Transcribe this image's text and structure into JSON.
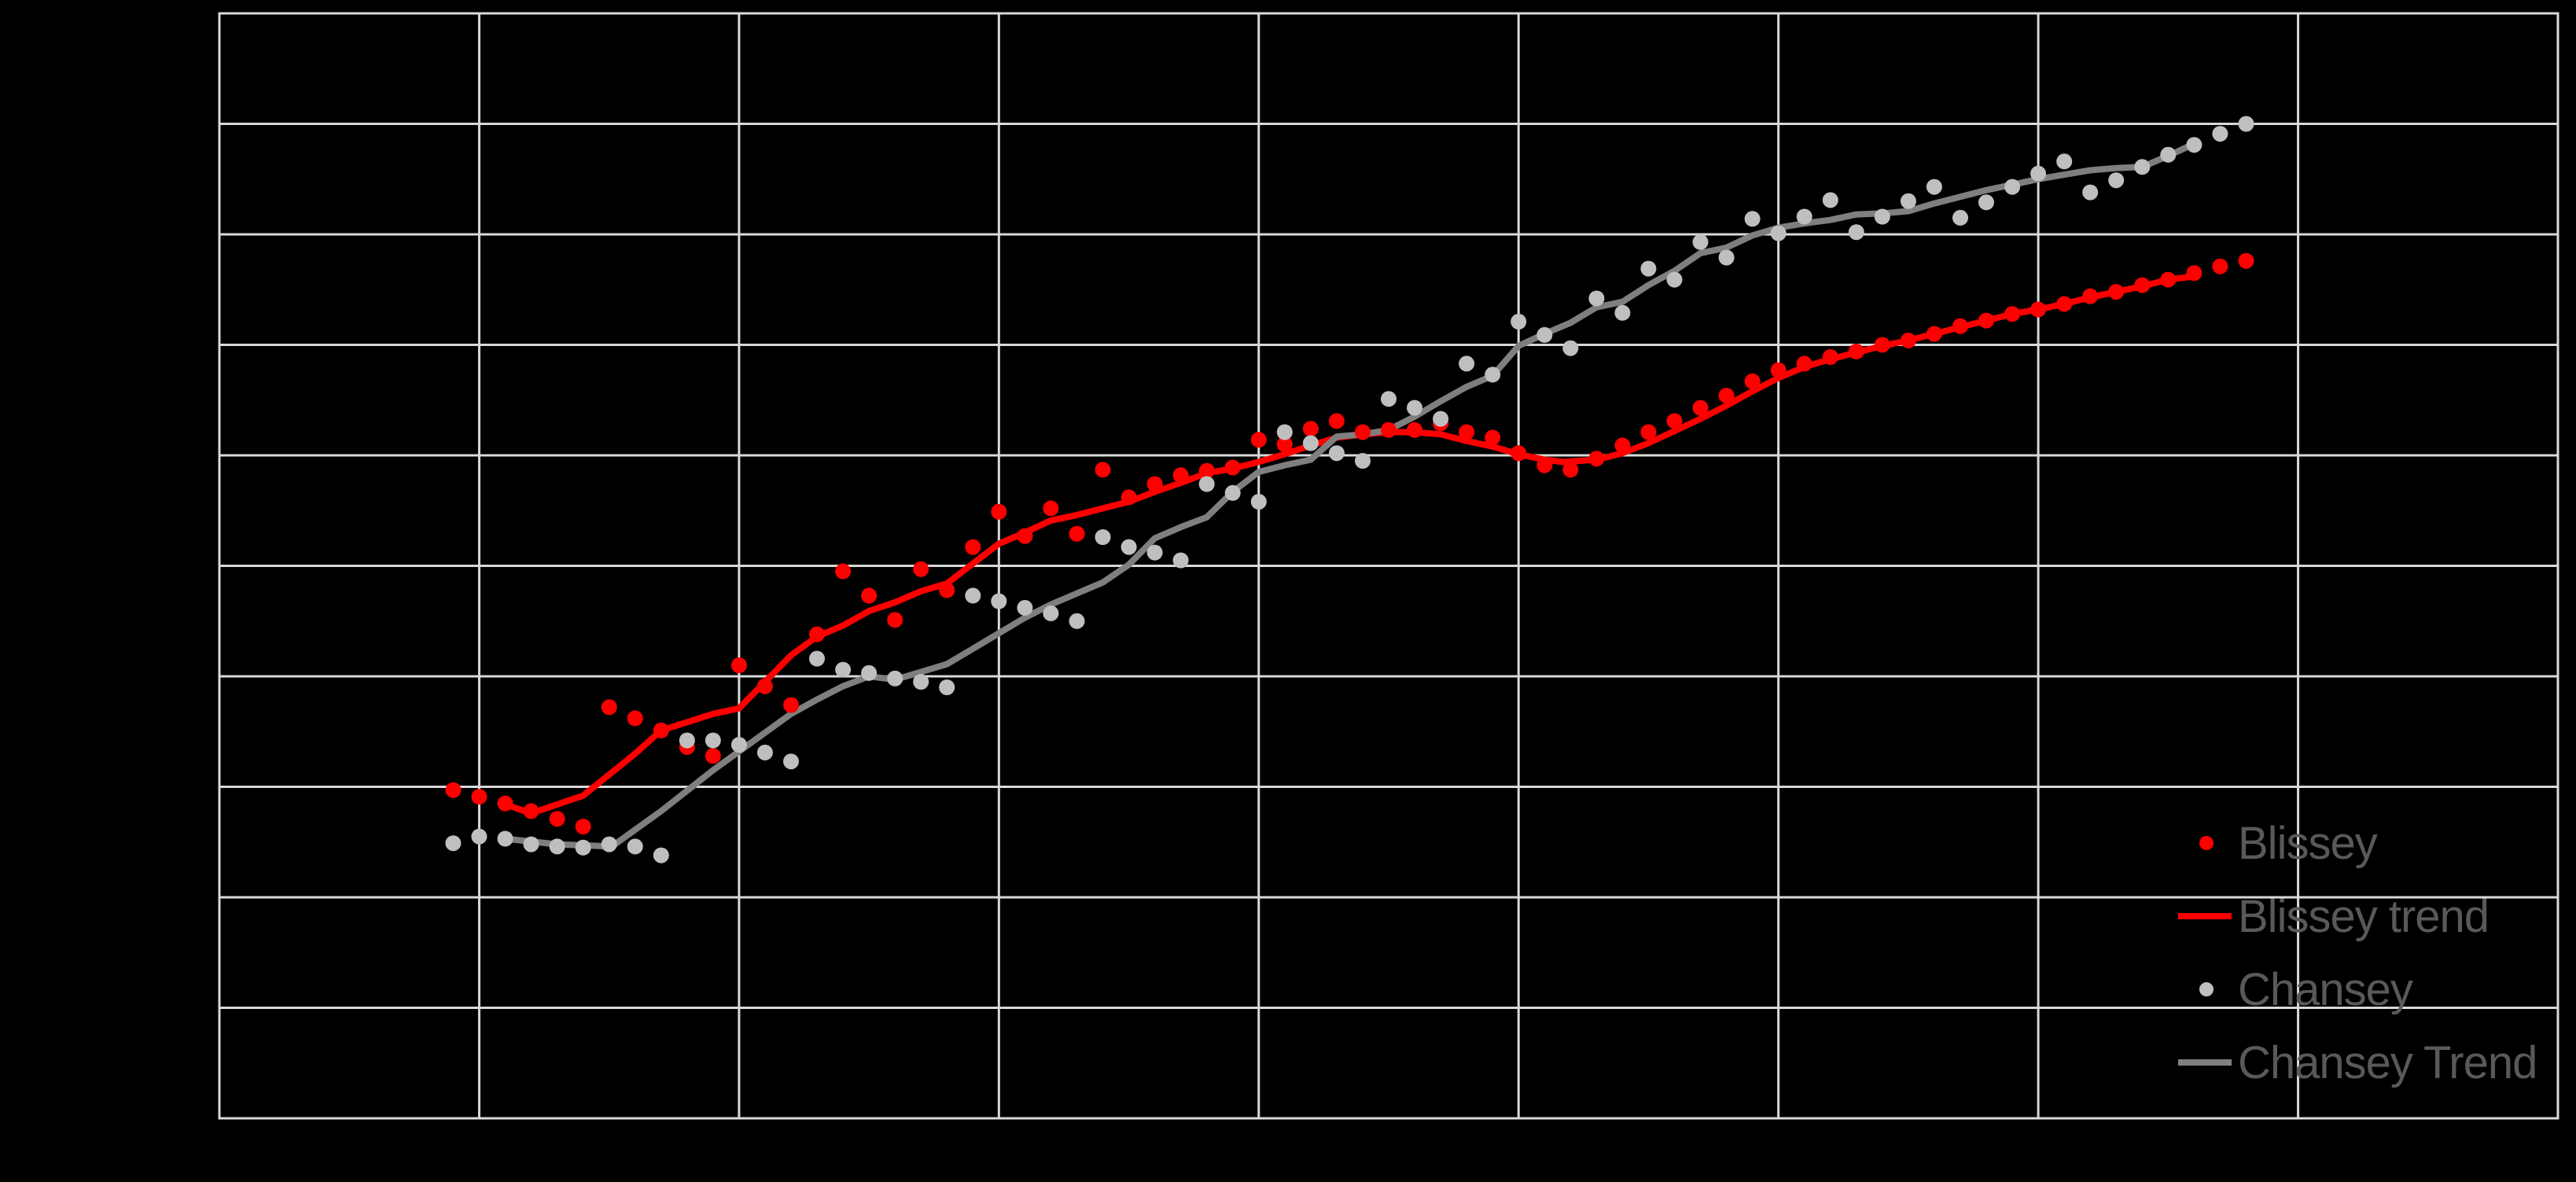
{
  "chart_data": {
    "type": "scatter",
    "title": "",
    "xlabel": "",
    "ylabel": "",
    "axis_tick_labels_visible": false,
    "xlim": [
      0,
      9
    ],
    "ylim": [
      0,
      10
    ],
    "grid": {
      "on": true,
      "x_divisions": 9,
      "y_divisions": 10
    },
    "units_note": "axes unlabeled in image; values are in gridline units estimated from the grid",
    "style": {
      "background": "#000000",
      "gridline_color": "#D9D9D9",
      "plot_border_color": "#D9D9D9"
    },
    "legend_position": "inside bottom-right",
    "series": [
      {
        "name": "Blissey",
        "type": "scatter",
        "color": "#FF0000",
        "x": [
          0.9,
          1.0,
          1.1,
          1.2,
          1.3,
          1.4,
          1.5,
          1.6,
          1.7,
          1.8,
          1.9,
          2.0,
          2.1,
          2.2,
          2.3,
          2.4,
          2.5,
          2.6,
          2.7,
          2.8,
          2.9,
          3.0,
          3.1,
          3.2,
          3.3,
          3.4,
          3.5,
          3.6,
          3.7,
          3.8,
          3.9,
          4.0,
          4.1,
          4.2,
          4.3,
          4.4,
          4.5,
          4.6,
          4.7,
          4.8,
          4.9,
          5.0,
          5.1,
          5.2,
          5.3,
          5.4,
          5.5,
          5.6,
          5.7,
          5.8,
          5.9,
          6.0,
          6.1,
          6.2,
          6.3,
          6.4,
          6.5,
          6.6,
          6.7,
          6.8,
          6.9,
          7.0,
          7.1,
          7.2,
          7.3,
          7.4,
          7.5,
          7.6,
          7.7,
          7.8
        ],
        "y": [
          2.97,
          2.91,
          2.85,
          2.78,
          2.71,
          2.64,
          3.72,
          3.62,
          3.51,
          3.36,
          3.28,
          4.1,
          3.91,
          3.74,
          4.38,
          4.95,
          4.73,
          4.51,
          4.97,
          4.78,
          5.17,
          5.49,
          5.27,
          5.52,
          5.29,
          5.87,
          5.62,
          5.74,
          5.82,
          5.86,
          5.89,
          6.14,
          6.1,
          6.24,
          6.31,
          6.21,
          6.23,
          6.23,
          6.29,
          6.21,
          6.16,
          6.02,
          5.91,
          5.87,
          5.97,
          6.09,
          6.21,
          6.31,
          6.43,
          6.54,
          6.67,
          6.77,
          6.83,
          6.89,
          6.94,
          7.0,
          7.04,
          7.1,
          7.17,
          7.22,
          7.28,
          7.32,
          7.37,
          7.44,
          7.48,
          7.54,
          7.59,
          7.65,
          7.71,
          7.76
        ]
      },
      {
        "name": "Blissey trend",
        "type": "line",
        "color": "#FF0000",
        "points": [
          [
            1.09,
            2.85
          ],
          [
            1.2,
            2.76
          ],
          [
            1.4,
            2.92
          ],
          [
            1.6,
            3.3
          ],
          [
            1.7,
            3.51
          ],
          [
            1.9,
            3.66
          ],
          [
            2.0,
            3.71
          ],
          [
            2.2,
            4.19
          ],
          [
            2.3,
            4.36
          ],
          [
            2.4,
            4.46
          ],
          [
            2.5,
            4.59
          ],
          [
            2.6,
            4.67
          ],
          [
            2.7,
            4.77
          ],
          [
            2.8,
            4.84
          ],
          [
            2.9,
            5.02
          ],
          [
            3.0,
            5.2
          ],
          [
            3.1,
            5.3
          ],
          [
            3.2,
            5.41
          ],
          [
            3.3,
            5.46
          ],
          [
            3.4,
            5.52
          ],
          [
            3.5,
            5.58
          ],
          [
            3.6,
            5.67
          ],
          [
            3.7,
            5.75
          ],
          [
            3.8,
            5.84
          ],
          [
            3.9,
            5.88
          ],
          [
            4.0,
            5.94
          ],
          [
            4.1,
            6.01
          ],
          [
            4.2,
            6.09
          ],
          [
            4.3,
            6.16
          ],
          [
            4.4,
            6.19
          ],
          [
            4.5,
            6.21
          ],
          [
            4.6,
            6.21
          ],
          [
            4.7,
            6.19
          ],
          [
            4.8,
            6.13
          ],
          [
            4.9,
            6.08
          ],
          [
            5.0,
            6.01
          ],
          [
            5.1,
            5.96
          ],
          [
            5.17,
            5.94
          ],
          [
            5.3,
            5.96
          ],
          [
            5.4,
            6.02
          ],
          [
            5.5,
            6.11
          ],
          [
            5.6,
            6.22
          ],
          [
            5.7,
            6.33
          ],
          [
            5.8,
            6.45
          ],
          [
            5.9,
            6.58
          ],
          [
            6.0,
            6.7
          ],
          [
            6.1,
            6.8
          ],
          [
            6.2,
            6.87
          ],
          [
            6.3,
            6.93
          ],
          [
            6.4,
            6.99
          ],
          [
            6.5,
            7.04
          ],
          [
            6.6,
            7.1
          ],
          [
            6.7,
            7.16
          ],
          [
            6.8,
            7.22
          ],
          [
            6.9,
            7.28
          ],
          [
            7.0,
            7.32
          ],
          [
            7.1,
            7.37
          ],
          [
            7.2,
            7.43
          ],
          [
            7.3,
            7.48
          ],
          [
            7.4,
            7.53
          ],
          [
            7.5,
            7.59
          ],
          [
            7.6,
            7.62
          ]
        ]
      },
      {
        "name": "Chansey",
        "type": "scatter",
        "color": "#BFBFBF",
        "x": [
          0.9,
          1.0,
          1.1,
          1.2,
          1.3,
          1.4,
          1.5,
          1.6,
          1.7,
          1.8,
          1.9,
          2.0,
          2.1,
          2.2,
          2.3,
          2.4,
          2.5,
          2.6,
          2.7,
          2.8,
          2.9,
          3.0,
          3.1,
          3.2,
          3.3,
          3.4,
          3.5,
          3.6,
          3.7,
          3.8,
          3.9,
          4.0,
          4.1,
          4.2,
          4.3,
          4.4,
          4.5,
          4.6,
          4.7,
          4.8,
          4.9,
          5.0,
          5.1,
          5.2,
          5.3,
          5.4,
          5.5,
          5.6,
          5.7,
          5.8,
          5.9,
          6.0,
          6.1,
          6.2,
          6.3,
          6.4,
          6.5,
          6.6,
          6.7,
          6.8,
          6.9,
          7.0,
          7.1,
          7.2,
          7.3,
          7.4,
          7.5,
          7.6,
          7.7,
          7.8
        ],
        "y": [
          2.49,
          2.55,
          2.53,
          2.48,
          2.46,
          2.45,
          2.48,
          2.46,
          2.38,
          3.42,
          3.42,
          3.38,
          3.31,
          3.23,
          4.16,
          4.06,
          4.03,
          3.98,
          3.95,
          3.9,
          4.73,
          4.68,
          4.62,
          4.57,
          4.5,
          5.26,
          5.17,
          5.12,
          5.05,
          5.74,
          5.66,
          5.58,
          6.21,
          6.11,
          6.02,
          5.95,
          6.51,
          6.43,
          6.33,
          6.83,
          6.73,
          7.21,
          7.09,
          6.97,
          7.42,
          7.29,
          7.69,
          7.59,
          7.93,
          7.79,
          8.14,
          8.01,
          8.16,
          8.31,
          8.02,
          8.16,
          8.3,
          8.43,
          8.15,
          8.29,
          8.43,
          8.55,
          8.66,
          8.38,
          8.49,
          8.61,
          8.72,
          8.81,
          8.91,
          9.0
        ]
      },
      {
        "name": "Chansey Trend",
        "type": "line",
        "color": "#7F7F7F",
        "points": [
          [
            1.1,
            2.53
          ],
          [
            1.3,
            2.48
          ],
          [
            1.51,
            2.46
          ],
          [
            1.7,
            2.78
          ],
          [
            1.9,
            3.15
          ],
          [
            2.0,
            3.32
          ],
          [
            2.2,
            3.66
          ],
          [
            2.3,
            3.79
          ],
          [
            2.4,
            3.91
          ],
          [
            2.5,
            4.0
          ],
          [
            2.6,
            3.97
          ],
          [
            2.7,
            4.04
          ],
          [
            2.8,
            4.11
          ],
          [
            2.9,
            4.25
          ],
          [
            3.0,
            4.39
          ],
          [
            3.1,
            4.53
          ],
          [
            3.2,
            4.65
          ],
          [
            3.3,
            4.75
          ],
          [
            3.4,
            4.85
          ],
          [
            3.5,
            5.01
          ],
          [
            3.6,
            5.25
          ],
          [
            3.7,
            5.35
          ],
          [
            3.8,
            5.44
          ],
          [
            3.9,
            5.67
          ],
          [
            4.0,
            5.85
          ],
          [
            4.1,
            5.91
          ],
          [
            4.2,
            5.96
          ],
          [
            4.3,
            6.17
          ],
          [
            4.4,
            6.19
          ],
          [
            4.5,
            6.23
          ],
          [
            4.6,
            6.35
          ],
          [
            4.7,
            6.49
          ],
          [
            4.8,
            6.62
          ],
          [
            4.9,
            6.72
          ],
          [
            5.0,
            6.99
          ],
          [
            5.1,
            7.1
          ],
          [
            5.2,
            7.2
          ],
          [
            5.3,
            7.34
          ],
          [
            5.4,
            7.39
          ],
          [
            5.5,
            7.54
          ],
          [
            5.6,
            7.67
          ],
          [
            5.7,
            7.83
          ],
          [
            5.8,
            7.88
          ],
          [
            5.9,
            7.99
          ],
          [
            6.0,
            8.06
          ],
          [
            6.1,
            8.1
          ],
          [
            6.2,
            8.13
          ],
          [
            6.3,
            8.18
          ],
          [
            6.4,
            8.19
          ],
          [
            6.5,
            8.21
          ],
          [
            6.6,
            8.28
          ],
          [
            6.7,
            8.34
          ],
          [
            6.8,
            8.4
          ],
          [
            6.9,
            8.45
          ],
          [
            7.0,
            8.5
          ],
          [
            7.1,
            8.54
          ],
          [
            7.2,
            8.58
          ],
          [
            7.3,
            8.6
          ],
          [
            7.4,
            8.61
          ],
          [
            7.5,
            8.71
          ],
          [
            7.6,
            8.82
          ]
        ]
      }
    ]
  },
  "legend": {
    "text_color": "#595959",
    "items": [
      {
        "label": "Blissey",
        "marker": "dot",
        "color": "#FF0000"
      },
      {
        "label": "Blissey trend",
        "marker": "line",
        "color": "#FF0000"
      },
      {
        "label": "Chansey",
        "marker": "dot",
        "color": "#BFBFBF"
      },
      {
        "label": "Chansey Trend",
        "marker": "line",
        "color": "#7F7F7F"
      }
    ]
  }
}
